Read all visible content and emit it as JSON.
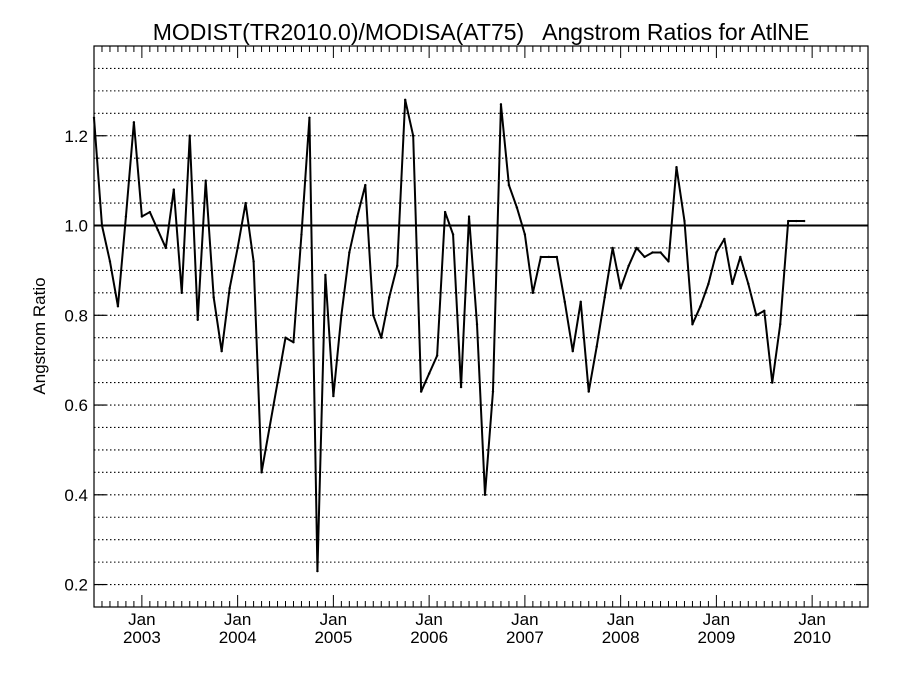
{
  "chart_data": {
    "type": "line",
    "title": "MODIST(TR2010.0)/MODISA(AT75)   Angstrom Ratios for AtlNE",
    "ylabel": "Angstrom Ratio",
    "xlabel": "",
    "xlim": [
      "2002-07",
      "2010-08"
    ],
    "ylim": [
      0.15,
      1.4
    ],
    "y_ticks": [
      0.2,
      0.4,
      0.6,
      0.8,
      1.0,
      1.2
    ],
    "y_tick_labels": [
      "0.2",
      "0.4",
      "0.6",
      "0.8",
      "1.0",
      "1.2"
    ],
    "y_gridlines": [
      0.15,
      0.2,
      0.25,
      0.3,
      0.35,
      0.4,
      0.45,
      0.5,
      0.55,
      0.6,
      0.65,
      0.7,
      0.75,
      0.8,
      0.85,
      0.9,
      0.95,
      1.0,
      1.05,
      1.1,
      1.15,
      1.2,
      1.25,
      1.3,
      1.35
    ],
    "grid": "horizontal dotted",
    "reference_line": 1.0,
    "x_ticks": [
      {
        "month": "Jan",
        "year": "2003",
        "date": "2003-01"
      },
      {
        "month": "Jan",
        "year": "2004",
        "date": "2004-01"
      },
      {
        "month": "Jan",
        "year": "2005",
        "date": "2005-01"
      },
      {
        "month": "Jan",
        "year": "2006",
        "date": "2006-01"
      },
      {
        "month": "Jan",
        "year": "2007",
        "date": "2007-01"
      },
      {
        "month": "Jan",
        "year": "2008",
        "date": "2008-01"
      },
      {
        "month": "Jan",
        "year": "2009",
        "date": "2009-01"
      },
      {
        "month": "Jan",
        "year": "2010",
        "date": "2010-01"
      }
    ],
    "series": [
      {
        "color": "#000000",
        "points": [
          [
            "2002-07",
            1.24
          ],
          [
            "2002-08",
            1.0
          ],
          [
            "2002-09",
            0.92
          ],
          [
            "2002-10",
            0.82
          ],
          [
            "2002-11",
            1.02
          ],
          [
            "2002-12",
            1.23
          ],
          [
            "2003-01",
            1.02
          ],
          [
            "2003-02",
            1.03
          ],
          [
            "2003-03",
            0.99
          ],
          [
            "2003-04",
            0.95
          ],
          [
            "2003-05",
            1.08
          ],
          [
            "2003-06",
            0.85
          ],
          [
            "2003-07",
            1.2
          ],
          [
            "2003-08",
            0.79
          ],
          [
            "2003-09",
            1.1
          ],
          [
            "2003-10",
            0.84
          ],
          [
            "2003-11",
            0.72
          ],
          [
            "2003-12",
            0.86
          ],
          [
            "2004-01",
            0.95
          ],
          [
            "2004-02",
            1.05
          ],
          [
            "2004-03",
            0.92
          ],
          [
            "2004-04",
            0.45
          ],
          [
            "2004-05",
            0.55
          ],
          [
            "2004-06",
            0.65
          ],
          [
            "2004-07",
            0.75
          ],
          [
            "2004-08",
            0.74
          ],
          [
            "2004-09",
            0.98
          ],
          [
            "2004-10",
            1.24
          ],
          [
            "2004-11",
            0.23
          ],
          [
            "2004-12",
            0.89
          ],
          [
            "2005-01",
            0.62
          ],
          [
            "2005-02",
            0.8
          ],
          [
            "2005-03",
            0.94
          ],
          [
            "2005-04",
            1.02
          ],
          [
            "2005-05",
            1.09
          ],
          [
            "2005-06",
            0.8
          ],
          [
            "2005-07",
            0.75
          ],
          [
            "2005-08",
            0.84
          ],
          [
            "2005-09",
            0.91
          ],
          [
            "2005-10",
            1.28
          ],
          [
            "2005-11",
            1.2
          ],
          [
            "2005-12",
            0.63
          ],
          [
            "2006-01",
            0.67
          ],
          [
            "2006-02",
            0.71
          ],
          [
            "2006-03",
            1.03
          ],
          [
            "2006-04",
            0.98
          ],
          [
            "2006-05",
            0.64
          ],
          [
            "2006-06",
            1.02
          ],
          [
            "2006-07",
            0.78
          ],
          [
            "2006-08",
            0.4
          ],
          [
            "2006-09",
            0.63
          ],
          [
            "2006-10",
            1.27
          ],
          [
            "2006-11",
            1.09
          ],
          [
            "2006-12",
            1.04
          ],
          [
            "2007-01",
            0.98
          ],
          [
            "2007-02",
            0.85
          ],
          [
            "2007-03",
            0.93
          ],
          [
            "2007-04",
            0.93
          ],
          [
            "2007-05",
            0.93
          ],
          [
            "2007-06",
            0.83
          ],
          [
            "2007-07",
            0.72
          ],
          [
            "2007-08",
            0.83
          ],
          [
            "2007-09",
            0.63
          ],
          [
            "2007-10",
            0.73
          ],
          [
            "2007-11",
            0.84
          ],
          [
            "2007-12",
            0.95
          ],
          [
            "2008-01",
            0.86
          ],
          [
            "2008-02",
            0.91
          ],
          [
            "2008-03",
            0.95
          ],
          [
            "2008-04",
            0.93
          ],
          [
            "2008-05",
            0.94
          ],
          [
            "2008-06",
            0.94
          ],
          [
            "2008-07",
            0.92
          ],
          [
            "2008-08",
            1.13
          ],
          [
            "2008-09",
            1.01
          ],
          [
            "2008-10",
            0.78
          ],
          [
            "2008-11",
            0.82
          ],
          [
            "2008-12",
            0.87
          ],
          [
            "2009-01",
            0.94
          ],
          [
            "2009-02",
            0.97
          ],
          [
            "2009-03",
            0.87
          ],
          [
            "2009-04",
            0.93
          ],
          [
            "2009-05",
            0.87
          ],
          [
            "2009-06",
            0.8
          ],
          [
            "2009-07",
            0.81
          ],
          [
            "2009-08",
            0.65
          ],
          [
            "2009-09",
            0.78
          ],
          [
            "2009-10",
            1.01
          ],
          [
            "2009-11",
            1.01
          ],
          [
            "2009-12",
            1.01
          ]
        ]
      }
    ]
  }
}
